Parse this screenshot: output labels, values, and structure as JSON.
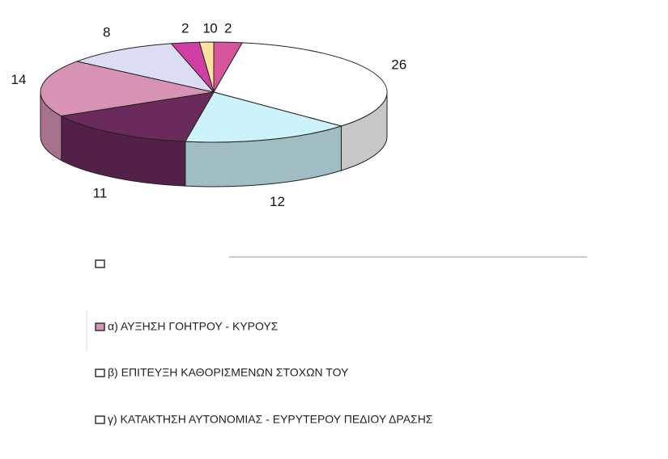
{
  "chart_data": {
    "type": "pie3d",
    "values": [
      2,
      26,
      12,
      11,
      14,
      8,
      2,
      1,
      0
    ],
    "colors": [
      "#d8559c",
      "#ffffff",
      "#ccf2fa",
      "#6a2a5c",
      "#d892b4",
      "#dcdcf4",
      "#d040a4",
      "#ffe2a0",
      "#f0f0f0"
    ],
    "legend": [
      {
        "label": "α) ΑΥΞΗΣΗ ΓΟΗΤΡΟΥ - ΚΥΡΟΥΣ",
        "color": "#d892b4"
      },
      {
        "label": "β) ΕΠΙΤΕΥΞΗ ΚΑΘΟΡΙΣΜΕΝΩΝ ΣΤΟΧΩΝ ΤΟΥ",
        "color": "#ffffff"
      },
      {
        "label": "γ) ΚΑΤΑΚΤΗΣΗ ΑΥΤΟΝΟΜΙΑΣ - ΕΥΡΥΤΕΡΟΥ ΠΕΔΙΟΥ ΔΡΑΣΗΣ",
        "color": "#ffffff"
      }
    ]
  }
}
